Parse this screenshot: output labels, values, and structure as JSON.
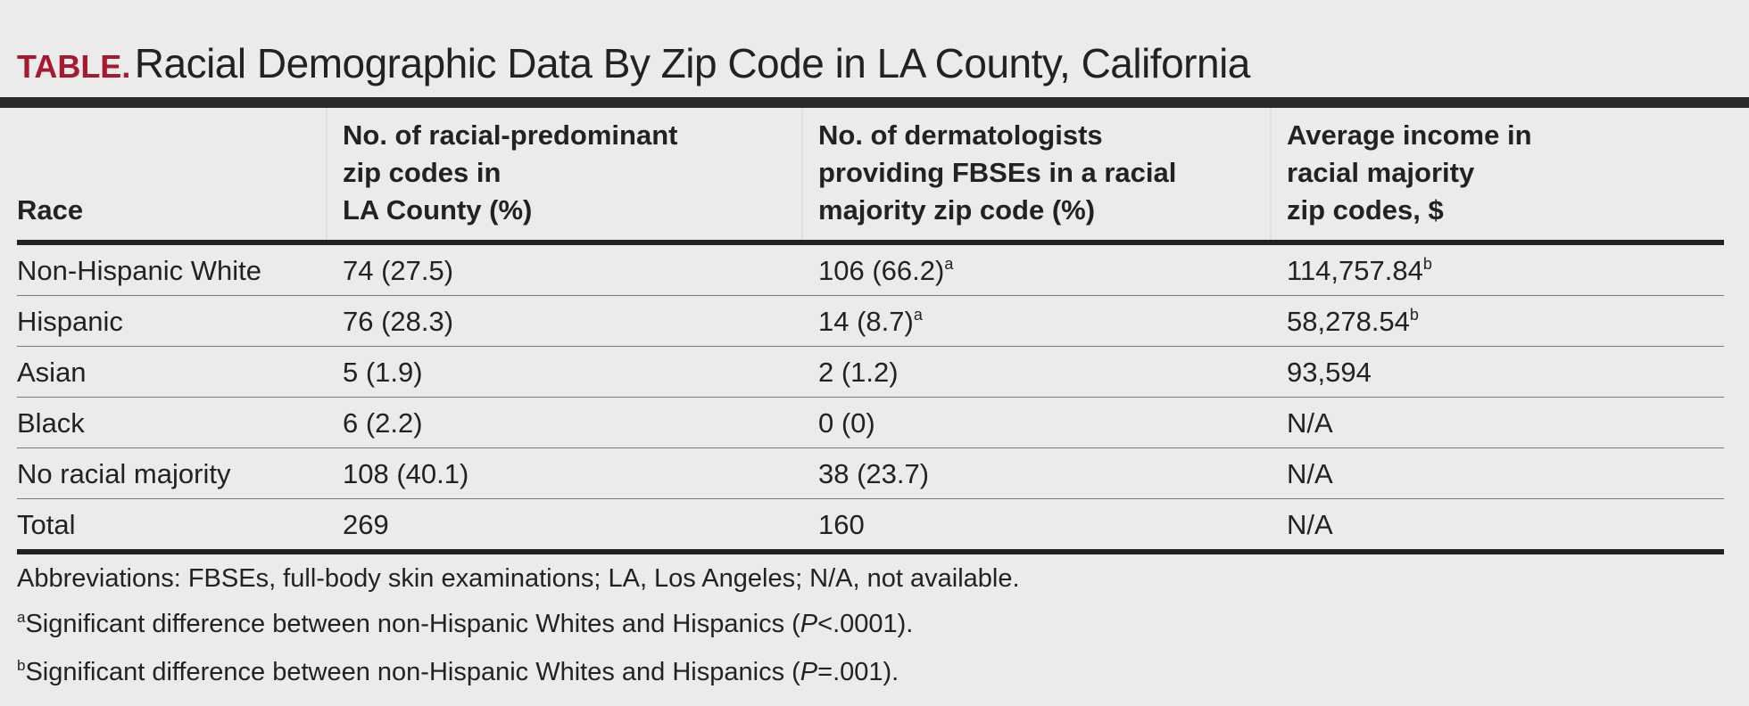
{
  "title": {
    "label": "TABLE.",
    "text": "Racial Demographic Data By Zip Code in LA County, California"
  },
  "table": {
    "headers": [
      {
        "lines": [
          "Race"
        ]
      },
      {
        "lines": [
          "No. of racial-predominant",
          "zip codes in",
          "LA County (%)"
        ]
      },
      {
        "lines": [
          "No. of dermatologists",
          "providing FBSEs in a racial",
          "majority zip code (%)"
        ]
      },
      {
        "lines": [
          "Average income in",
          "racial majority",
          "zip codes, $"
        ]
      }
    ],
    "rows": [
      {
        "race": "Non-Hispanic White",
        "zip_codes": "74 (27.5)",
        "dermatologists": "106 (66.2)",
        "derm_note": "a",
        "income": "114,757.84",
        "income_note": "b"
      },
      {
        "race": "Hispanic",
        "zip_codes": "76 (28.3)",
        "dermatologists": "14 (8.7)",
        "derm_note": "a",
        "income": "58,278.54",
        "income_note": "b"
      },
      {
        "race": "Asian",
        "zip_codes": "5 (1.9)",
        "dermatologists": "2 (1.2)",
        "derm_note": "",
        "income": "93,594",
        "income_note": ""
      },
      {
        "race": "Black",
        "zip_codes": "6 (2.2)",
        "dermatologists": "0 (0)",
        "derm_note": "",
        "income": "N/A",
        "income_note": ""
      },
      {
        "race": "No racial majority",
        "zip_codes": "108 (40.1)",
        "dermatologists": "38 (23.7)",
        "derm_note": "",
        "income": "N/A",
        "income_note": ""
      },
      {
        "race": "Total",
        "zip_codes": "269",
        "dermatologists": "160",
        "derm_note": "",
        "income": "N/A",
        "income_note": ""
      }
    ]
  },
  "footnotes": {
    "abbreviations": "Abbreviations: FBSEs, full-body skin examinations; LA, Los Angeles; N/A, not available.",
    "a": {
      "marker": "a",
      "text_before": "Significant difference between non-Hispanic Whites and Hispanics (",
      "p": "P",
      "text_after": "<.0001)."
    },
    "b": {
      "marker": "b",
      "text_before": "Significant difference between non-Hispanic Whites and Hispanics (",
      "p": "P",
      "text_after": "=.001)."
    }
  }
}
